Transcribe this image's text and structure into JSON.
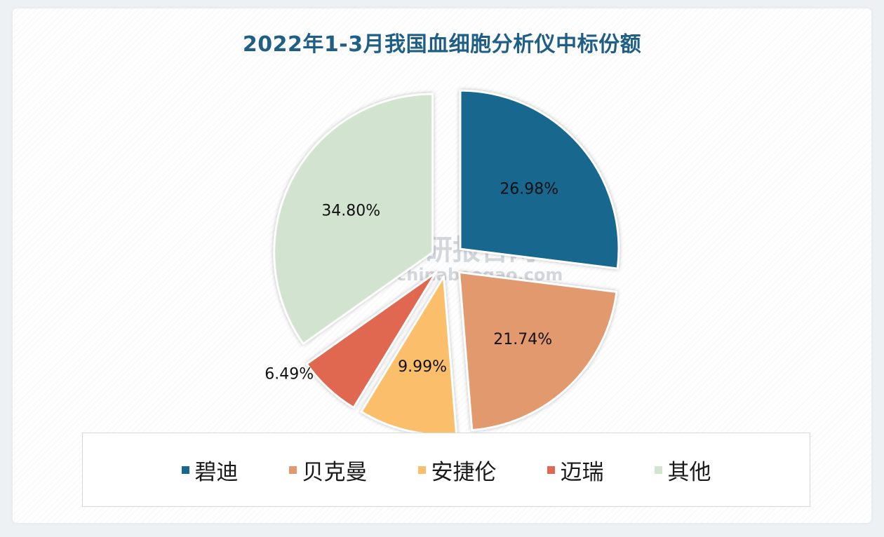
{
  "chart_data": {
    "type": "pie",
    "title": "2022年1-3月我国血细胞分析仪中标份额",
    "slices": [
      {
        "label": "碧迪",
        "value": 26.98,
        "display": "26.98%",
        "color": "#17678f"
      },
      {
        "label": "贝克曼",
        "value": 21.74,
        "display": "21.74%",
        "color": "#e2996d"
      },
      {
        "label": "安捷伦",
        "value": 9.99,
        "display": "9.99%",
        "color": "#fbbf6c"
      },
      {
        "label": "迈瑞",
        "value": 6.49,
        "display": "6.49%",
        "color": "#e06850"
      },
      {
        "label": "其他",
        "value": 34.8,
        "display": "34.80%",
        "color": "#d2e4cf"
      }
    ],
    "legend_position": "bottom"
  },
  "watermark": {
    "brand": "观研报告网",
    "domain": "chinabaogao.com"
  }
}
